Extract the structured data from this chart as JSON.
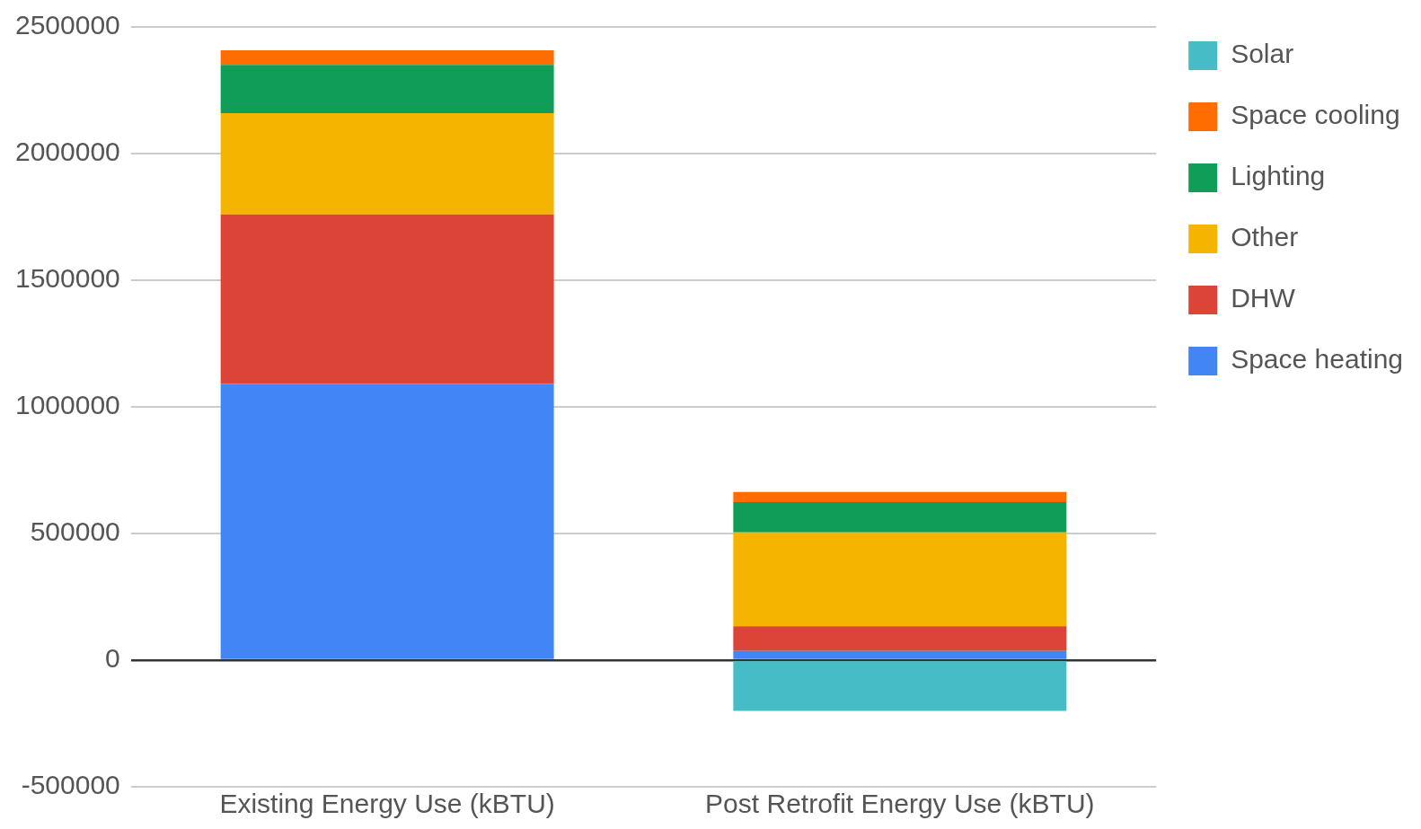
{
  "chart_data": {
    "type": "bar",
    "stacked": true,
    "categories": [
      "Existing Energy Use (kBTU)",
      "Post Retrofit Energy Use (kBTU)"
    ],
    "series": [
      {
        "name": "Space heating",
        "color": "#4285f4",
        "values": [
          1090000,
          36000
        ]
      },
      {
        "name": "DHW",
        "color": "#db4437",
        "values": [
          670000,
          98000
        ]
      },
      {
        "name": "Other",
        "color": "#f4b400",
        "values": [
          400000,
          370000
        ]
      },
      {
        "name": "Lighting",
        "color": "#0f9d58",
        "values": [
          190000,
          120000
        ]
      },
      {
        "name": "Space cooling",
        "color": "#ff6d00",
        "values": [
          58000,
          40000
        ]
      },
      {
        "name": "Solar",
        "color": "#46bdc6",
        "values": [
          0,
          -200000
        ]
      }
    ],
    "ylim": [
      -500000,
      2500000
    ],
    "yticks": [
      -500000,
      0,
      500000,
      1000000,
      1500000,
      2000000,
      2500000
    ],
    "grid": "y",
    "legend": "top right"
  }
}
